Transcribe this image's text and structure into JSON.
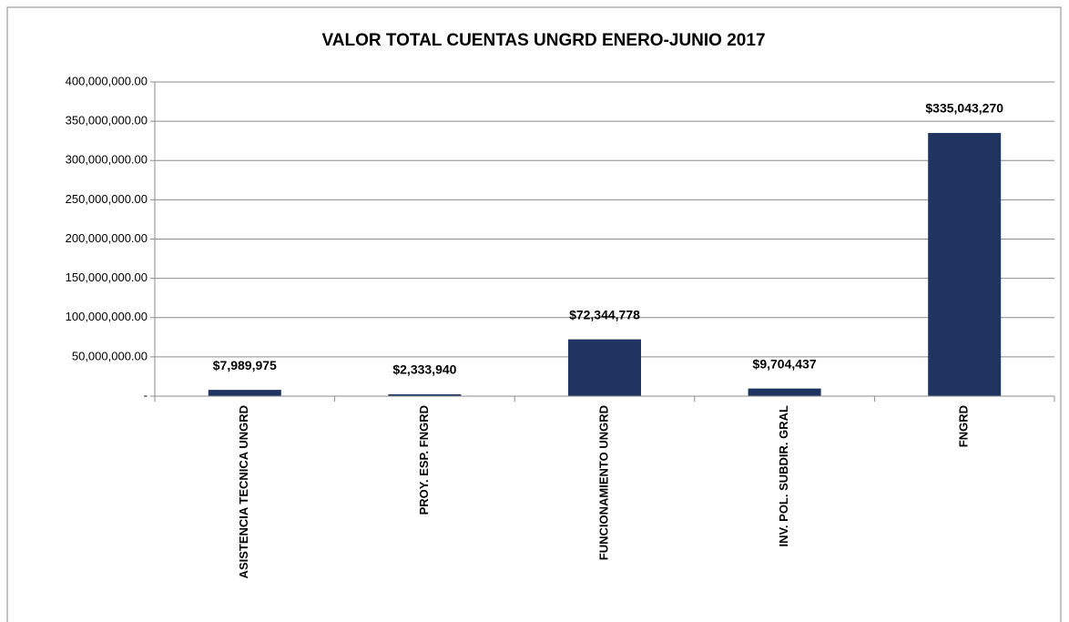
{
  "chart_data": {
    "type": "bar",
    "title": "VALOR TOTAL CUENTAS UNGRD ENERO-JUNIO 2017",
    "categories": [
      "ASISTENCIA TECNICA UNGRD",
      "PROY. ESP. FNGRD",
      "FUNCIONAMIENTO UNGRD",
      "INV. POL. SUBDIR. GRAL",
      "FNGRD"
    ],
    "values": [
      7989975,
      2333940,
      72344778,
      9704437,
      335043270
    ],
    "value_labels": [
      "$7,989,975",
      "$2,333,940",
      "$72,344,778",
      "$9,704,437",
      "$335,043,270"
    ],
    "color": "#203461",
    "ylim": [
      0,
      400000000
    ],
    "yticks": [
      {
        "value": 0,
        "label": "-"
      },
      {
        "value": 50000000,
        "label": "50,000,000.00"
      },
      {
        "value": 100000000,
        "label": "100,000,000.00"
      },
      {
        "value": 150000000,
        "label": "150,000,000.00"
      },
      {
        "value": 200000000,
        "label": "200,000,000.00"
      },
      {
        "value": 250000000,
        "label": "250,000,000.00"
      },
      {
        "value": 300000000,
        "label": "300,000,000.00"
      },
      {
        "value": 350000000,
        "label": "350,000,000.00"
      },
      {
        "value": 400000000,
        "label": "400,000,000.00"
      }
    ],
    "grid": true
  }
}
